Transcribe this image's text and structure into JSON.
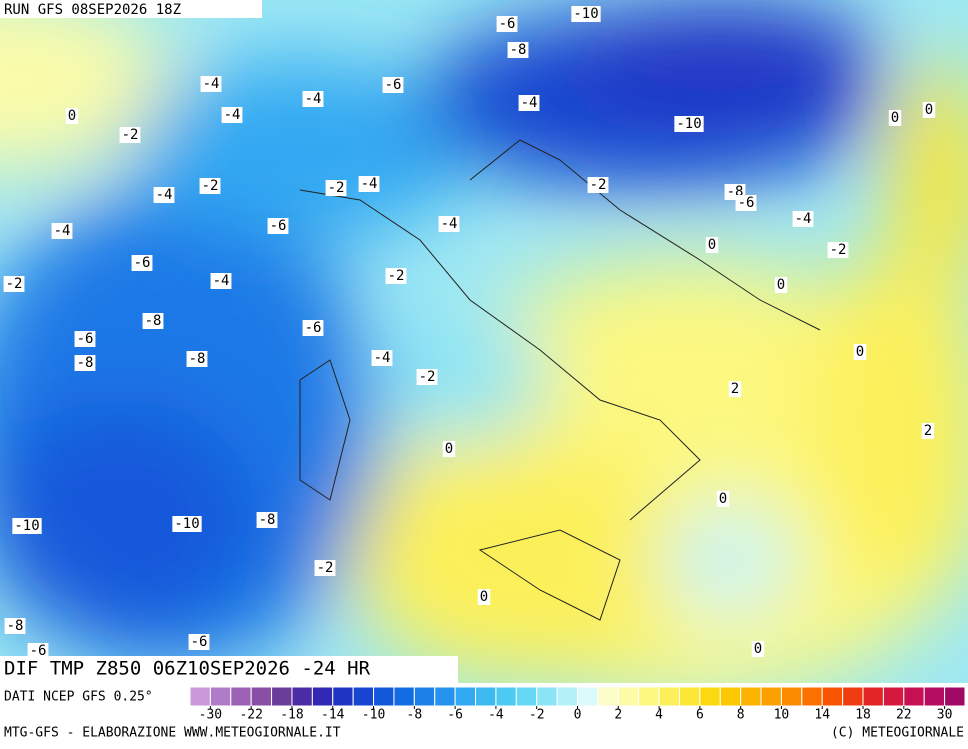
{
  "header": {
    "run": "RUN GFS 08SEP2026 18Z",
    "field": "DIF TMP Z850 06Z10SEP2026 -24 HR",
    "source": "DATI NCEP GFS 0.25°"
  },
  "footer": {
    "left": "MTG-GFS - ELABORAZIONE WWW.METEOGIORNALE.IT",
    "right": "(C) METEOGIORNALE"
  },
  "contour_labels": [
    "-10",
    "-6",
    "-8",
    "-4",
    "-4",
    "-6",
    "-4",
    "-4",
    "0",
    "-2",
    "-10",
    "0",
    "0",
    "-2",
    "-2",
    "-4",
    "-2",
    "-4",
    "-8",
    "-6",
    "-6",
    "-4",
    "-4",
    "-4",
    "0",
    "-2",
    "-6",
    "-2",
    "-4",
    "0",
    "-2",
    "-8",
    "-6",
    "-6",
    "0",
    "-8",
    "-8",
    "-4",
    "-2",
    "2",
    "2",
    "0",
    "0",
    "-10",
    "-10",
    "-8",
    "-2",
    "0",
    "-8",
    "-6",
    "-6",
    "0"
  ],
  "colorbar": {
    "ticks": [
      -30,
      -22,
      -18,
      -14,
      -10,
      -8,
      -6,
      -4,
      -2,
      0,
      2,
      4,
      6,
      8,
      10,
      14,
      18,
      22,
      30
    ],
    "colors": [
      "#c898d8",
      "#b07cc8",
      "#9c62b6",
      "#8a4ea6",
      "#6a3c9c",
      "#4a2ca4",
      "#3228b4",
      "#2034c4",
      "#1646d0",
      "#1458da",
      "#146ce2",
      "#1c80e8",
      "#2694ee",
      "#30a8f2",
      "#3cbaf2",
      "#4ccaf2",
      "#66d8f4",
      "#8ae4f6",
      "#b4f0f8",
      "#dcfafa",
      "#fcfcc8",
      "#fcfca8",
      "#fcf880",
      "#fcf05a",
      "#fce636",
      "#fcd810",
      "#fcc800",
      "#fcb400",
      "#fca000",
      "#fc8a00",
      "#fc7000",
      "#f85400",
      "#ee3c10",
      "#e22424",
      "#d41840",
      "#c61054",
      "#b40c5e",
      "#a00a66"
    ]
  }
}
